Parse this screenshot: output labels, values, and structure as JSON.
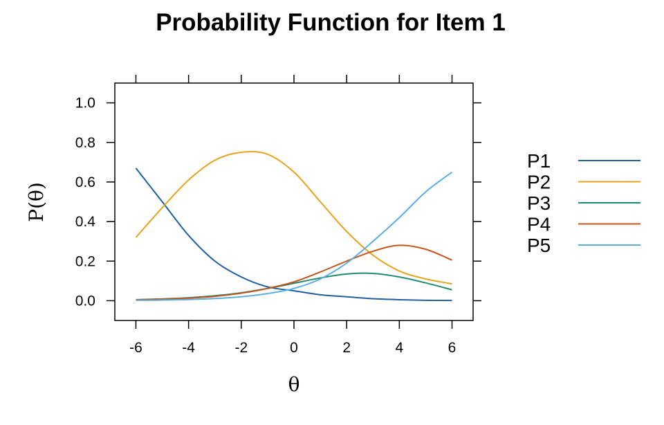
{
  "chart_data": {
    "type": "line",
    "title": "Probability Function for Item 1",
    "xlabel": "θ",
    "ylabel": "P(θ)",
    "xlim": [
      -6.8,
      6.8
    ],
    "ylim": [
      -0.1,
      1.1
    ],
    "xticks": [
      -6,
      -4,
      -2,
      0,
      2,
      4,
      6
    ],
    "xtick_labels": [
      "-6",
      "-4",
      "-2",
      "0",
      "2",
      "4",
      "6"
    ],
    "yticks": [
      0.0,
      0.2,
      0.4,
      0.6,
      0.8,
      1.0
    ],
    "ytick_labels": [
      "0.0",
      "0.2",
      "0.4",
      "0.6",
      "0.8",
      "1.0"
    ],
    "grid": false,
    "legend_position": "right",
    "x": [
      -6,
      -5,
      -4,
      -3,
      -2,
      -1,
      0,
      1,
      2,
      3,
      4,
      5,
      6
    ],
    "series": [
      {
        "name": "P1",
        "color": "#1f5fa0",
        "values": [
          0.67,
          0.5,
          0.33,
          0.2,
          0.12,
          0.07,
          0.05,
          0.03,
          0.02,
          0.01,
          0.005,
          0.002,
          0.001
        ]
      },
      {
        "name": "P2",
        "color": "#e8a21c",
        "values": [
          0.32,
          0.47,
          0.61,
          0.71,
          0.75,
          0.74,
          0.65,
          0.5,
          0.35,
          0.23,
          0.15,
          0.11,
          0.085
        ]
      },
      {
        "name": "P3",
        "color": "#1e8c6e",
        "values": [
          0.005,
          0.009,
          0.015,
          0.025,
          0.04,
          0.062,
          0.088,
          0.115,
          0.135,
          0.138,
          0.12,
          0.09,
          0.055
        ]
      },
      {
        "name": "P4",
        "color": "#c4541a",
        "values": [
          0.005,
          0.008,
          0.013,
          0.022,
          0.038,
          0.062,
          0.095,
          0.145,
          0.2,
          0.25,
          0.28,
          0.26,
          0.205
        ]
      },
      {
        "name": "P5",
        "color": "#5aaee0",
        "values": [
          0.002,
          0.003,
          0.006,
          0.011,
          0.02,
          0.036,
          0.062,
          0.11,
          0.19,
          0.3,
          0.42,
          0.55,
          0.65
        ]
      }
    ]
  }
}
